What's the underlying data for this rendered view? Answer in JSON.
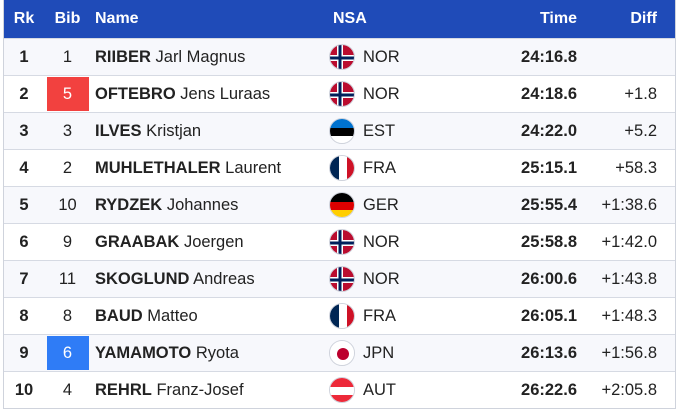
{
  "headers": {
    "rk": "Rk",
    "bib": "Bib",
    "name": "Name",
    "nsa": "NSA",
    "time": "Time",
    "diff": "Diff"
  },
  "rows": [
    {
      "rk": "1",
      "bib": "1",
      "bib_color": "",
      "surname": "RIIBER",
      "given": "Jarl Magnus",
      "nsa": "NOR",
      "flag": "norway-flag-icon",
      "time": "24:16.8",
      "diff": ""
    },
    {
      "rk": "2",
      "bib": "5",
      "bib_color": "#f2413f",
      "surname": "OFTEBRO",
      "given": "Jens Luraas",
      "nsa": "NOR",
      "flag": "norway-flag-icon",
      "time": "24:18.6",
      "diff": "+1.8"
    },
    {
      "rk": "3",
      "bib": "3",
      "bib_color": "",
      "surname": "ILVES",
      "given": "Kristjan",
      "nsa": "EST",
      "flag": "estonia-flag-icon",
      "time": "24:22.0",
      "diff": "+5.2"
    },
    {
      "rk": "4",
      "bib": "2",
      "bib_color": "",
      "surname": "MUHLETHALER",
      "given": "Laurent",
      "nsa": "FRA",
      "flag": "france-flag-icon",
      "time": "25:15.1",
      "diff": "+58.3"
    },
    {
      "rk": "5",
      "bib": "10",
      "bib_color": "",
      "surname": "RYDZEK",
      "given": "Johannes",
      "nsa": "GER",
      "flag": "germany-flag-icon",
      "time": "25:55.4",
      "diff": "+1:38.6"
    },
    {
      "rk": "6",
      "bib": "9",
      "bib_color": "",
      "surname": "GRAABAK",
      "given": "Joergen",
      "nsa": "NOR",
      "flag": "norway-flag-icon",
      "time": "25:58.8",
      "diff": "+1:42.0"
    },
    {
      "rk": "7",
      "bib": "11",
      "bib_color": "",
      "surname": "SKOGLUND",
      "given": "Andreas",
      "nsa": "NOR",
      "flag": "norway-flag-icon",
      "time": "26:00.6",
      "diff": "+1:43.8"
    },
    {
      "rk": "8",
      "bib": "8",
      "bib_color": "",
      "surname": "BAUD",
      "given": "Matteo",
      "nsa": "FRA",
      "flag": "france-flag-icon",
      "time": "26:05.1",
      "diff": "+1:48.3"
    },
    {
      "rk": "9",
      "bib": "6",
      "bib_color": "#2f7cf6",
      "surname": "YAMAMOTO",
      "given": "Ryota",
      "nsa": "JPN",
      "flag": "japan-flag-icon",
      "time": "26:13.6",
      "diff": "+1:56.8"
    },
    {
      "rk": "10",
      "bib": "4",
      "bib_color": "",
      "surname": "REHRL",
      "given": "Franz-Josef",
      "nsa": "AUT",
      "flag": "austria-flag-icon",
      "time": "26:22.6",
      "diff": "+2:05.8"
    }
  ],
  "colors": {
    "header_bg": "#1f4bb8",
    "bib_red": "#f2413f",
    "bib_blue": "#2f7cf6"
  }
}
